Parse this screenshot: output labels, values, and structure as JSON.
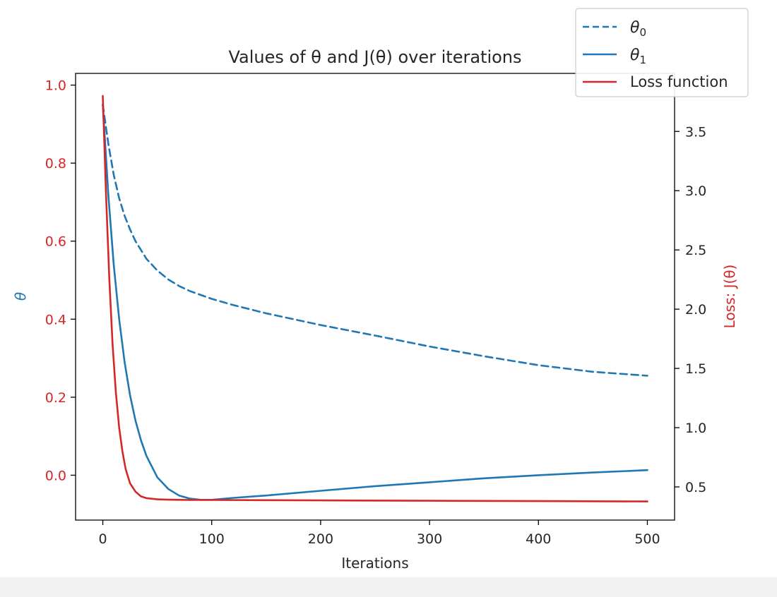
{
  "chart_data": {
    "type": "line",
    "title": "Values of θ and J(θ) over iterations",
    "xlabel": "Iterations",
    "ylabel_left": "θ",
    "ylabel_right": "Loss: J(θ)",
    "xlim": [
      -25,
      525
    ],
    "ylim_left": [
      -0.115,
      1.03
    ],
    "ylim_right": [
      0.22,
      3.99
    ],
    "x_ticks": [
      "0",
      "100",
      "200",
      "300",
      "400",
      "500"
    ],
    "x_tick_values": [
      0,
      100,
      200,
      300,
      400,
      500
    ],
    "y_left_ticks": [
      "0.0",
      "0.2",
      "0.4",
      "0.6",
      "0.8",
      "1.0"
    ],
    "y_left_tick_values": [
      0.0,
      0.2,
      0.4,
      0.6,
      0.8,
      1.0
    ],
    "y_right_ticks": [
      "0.5",
      "1.0",
      "1.5",
      "2.0",
      "2.5",
      "3.0",
      "3.5"
    ],
    "y_right_tick_values": [
      0.5,
      1.0,
      1.5,
      2.0,
      2.5,
      3.0,
      3.5
    ],
    "grid": false,
    "legend_position": "top-right",
    "colors": {
      "theta": "#1f77b4",
      "loss": "#d62728",
      "left_tick_labels": "#d62728",
      "left_axis_label": "#1f77b4",
      "right_axis_label": "#d62728"
    },
    "series": [
      {
        "name": "θ0",
        "legend_label": "θ",
        "legend_sub": "0",
        "axis": "left",
        "style": "dashed",
        "color": "#1f77b4",
        "x": [
          0,
          5,
          10,
          15,
          20,
          25,
          30,
          40,
          50,
          60,
          70,
          80,
          100,
          120,
          150,
          200,
          250,
          300,
          350,
          400,
          450,
          500
        ],
        "values": [
          0.95,
          0.85,
          0.77,
          0.71,
          0.665,
          0.63,
          0.6,
          0.555,
          0.525,
          0.502,
          0.485,
          0.472,
          0.452,
          0.436,
          0.415,
          0.385,
          0.358,
          0.33,
          0.305,
          0.282,
          0.265,
          0.255
        ]
      },
      {
        "name": "θ1",
        "legend_label": "θ",
        "legend_sub": "1",
        "axis": "left",
        "style": "solid",
        "color": "#1f77b4",
        "x": [
          0,
          5,
          10,
          15,
          20,
          25,
          30,
          35,
          40,
          50,
          60,
          70,
          80,
          90,
          100,
          120,
          150,
          200,
          250,
          300,
          350,
          400,
          450,
          500
        ],
        "values": [
          0.95,
          0.72,
          0.54,
          0.4,
          0.29,
          0.205,
          0.14,
          0.09,
          0.05,
          -0.005,
          -0.035,
          -0.052,
          -0.06,
          -0.063,
          -0.063,
          -0.058,
          -0.052,
          -0.04,
          -0.028,
          -0.018,
          -0.008,
          0.0,
          0.007,
          0.013
        ]
      },
      {
        "name": "Loss function",
        "legend_label": "Loss function",
        "axis": "right",
        "style": "solid",
        "color": "#d62728",
        "x": [
          0,
          3,
          6,
          9,
          12,
          15,
          18,
          21,
          25,
          30,
          35,
          40,
          50,
          60,
          80,
          100,
          150,
          200,
          300,
          400,
          500
        ],
        "values": [
          3.8,
          2.95,
          2.25,
          1.7,
          1.3,
          1.0,
          0.8,
          0.65,
          0.53,
          0.46,
          0.42,
          0.405,
          0.395,
          0.392,
          0.39,
          0.39,
          0.388,
          0.386,
          0.383,
          0.38,
          0.377
        ]
      }
    ]
  }
}
